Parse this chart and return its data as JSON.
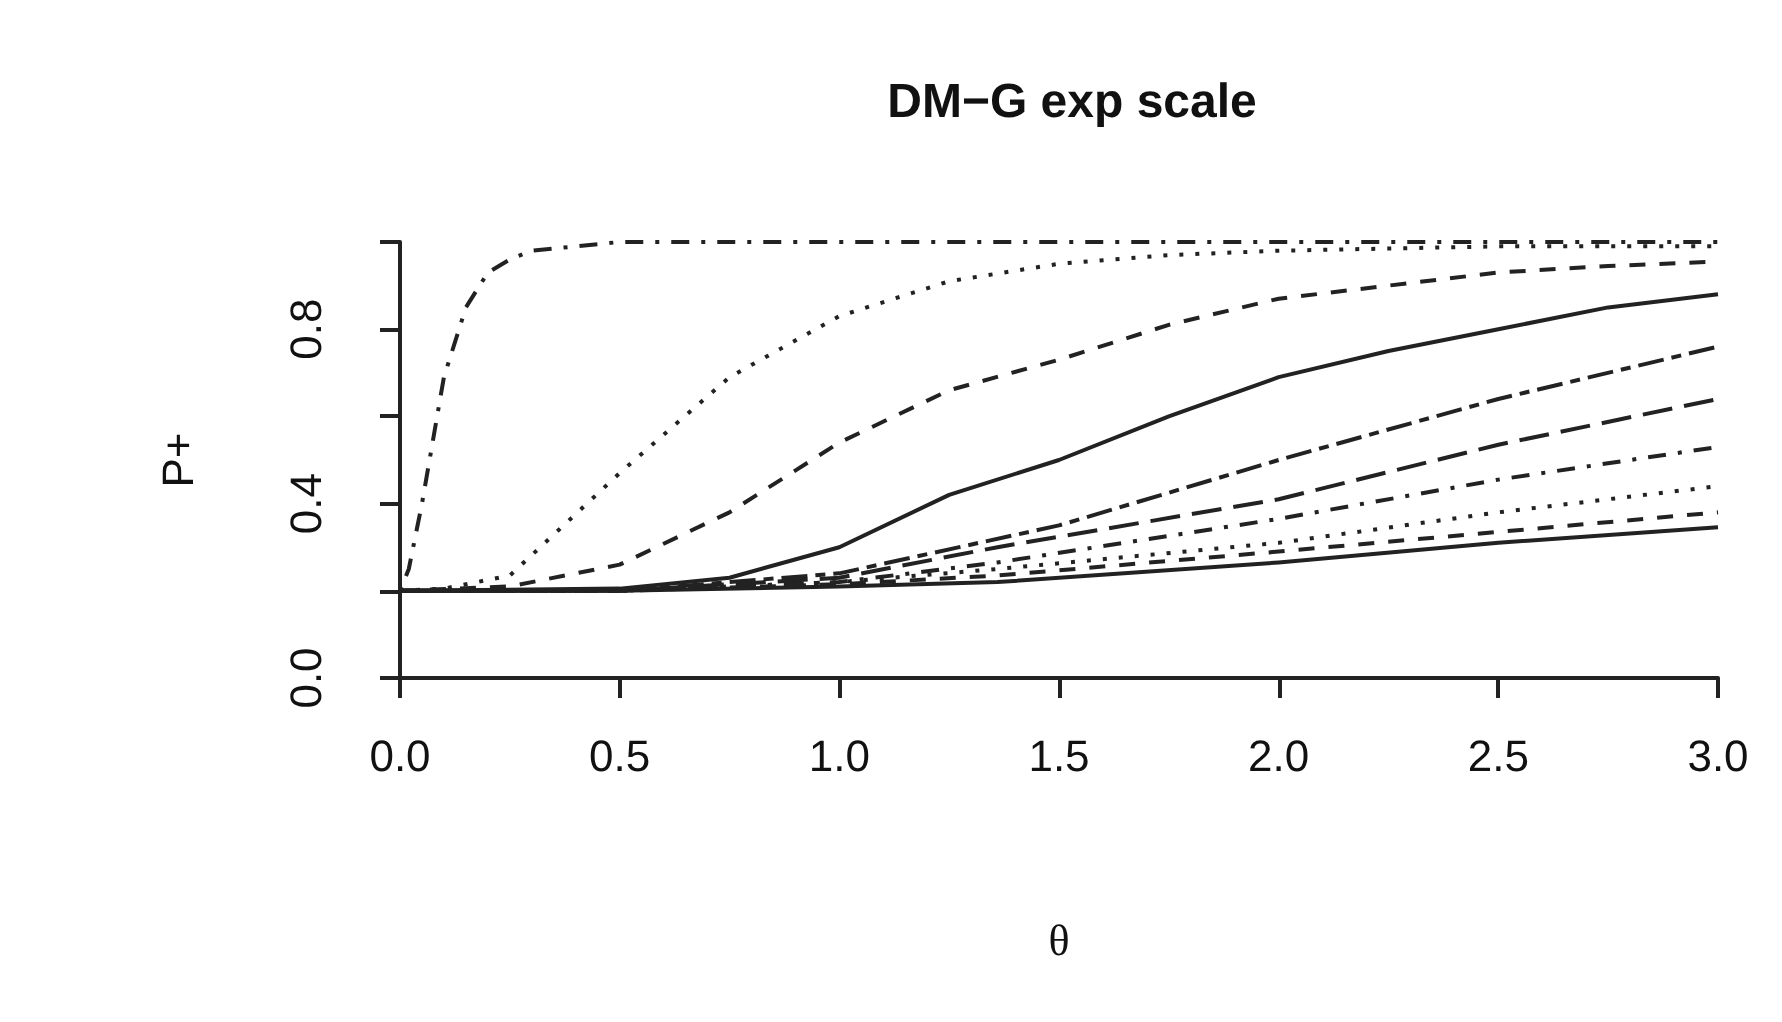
{
  "chart_data": {
    "type": "line",
    "title": "DM−G exp scale",
    "xlabel": "θ",
    "ylabel": "P+",
    "xlim": [
      0,
      3
    ],
    "xticks": [
      {
        "value": 0,
        "label": "0.0"
      },
      0.5,
      {
        "value": 1,
        "label": "1.0"
      },
      1.5,
      {
        "value": 2,
        "label": "2.0"
      },
      2.5,
      {
        "value": 3,
        "label": "3.0"
      }
    ],
    "ylim": [
      0,
      1
    ],
    "yticks": [
      {
        "value": 0,
        "label": "0.0"
      },
      {
        "value": 0.2,
        "label": null
      },
      0.4,
      {
        "value": 0.6,
        "label": null
      },
      0.8,
      {
        "value": 1,
        "label": null
      }
    ],
    "grid": false,
    "marker": "none",
    "series": [
      {
        "color": "#222222",
        "line_style": "solid",
        "x": [
          0,
          0.5,
          1,
          1.36,
          2,
          2.5,
          3
        ],
        "values": [
          0.2,
          0.2,
          0.21,
          0.22,
          0.265,
          0.31,
          0.346
        ]
      },
      {
        "color": "#222222",
        "line_style": "dashed",
        "x": [
          0,
          0.5,
          1,
          1.36,
          2,
          2.5,
          3
        ],
        "values": [
          0.2,
          0.2,
          0.215,
          0.235,
          0.29,
          0.335,
          0.38
        ]
      },
      {
        "color": "#222222",
        "line_style": "dotted",
        "x": [
          0,
          0.5,
          1,
          1.36,
          2,
          2.5,
          3
        ],
        "values": [
          0.2,
          0.2,
          0.22,
          0.25,
          0.31,
          0.38,
          0.44
        ]
      },
      {
        "color": "#222222",
        "line_style": "dotdash",
        "x": [
          0,
          0.5,
          1,
          1.36,
          2,
          2.5,
          3
        ],
        "values": [
          0.2,
          0.2,
          0.22,
          0.265,
          0.365,
          0.455,
          0.53
        ]
      },
      {
        "color": "#222222",
        "line_style": "longdash",
        "x": [
          0,
          0.5,
          1,
          1.36,
          2,
          2.5,
          3
        ],
        "values": [
          0.2,
          0.2,
          0.23,
          0.3,
          0.41,
          0.535,
          0.64
        ]
      },
      {
        "color": "#222222",
        "line_style": "twodash",
        "x": [
          0,
          0.5,
          1,
          1.5,
          2,
          2.5,
          3
        ],
        "values": [
          0.2,
          0.2,
          0.24,
          0.35,
          0.5,
          0.64,
          0.76
        ]
      },
      {
        "color": "#222222",
        "line_style": "solid",
        "x": [
          0,
          0.5,
          0.75,
          1,
          1.25,
          1.5,
          1.75,
          2,
          2.25,
          2.5,
          2.75,
          3
        ],
        "values": [
          0.2,
          0.205,
          0.23,
          0.3,
          0.42,
          0.5,
          0.6,
          0.69,
          0.75,
          0.8,
          0.85,
          0.88
        ]
      },
      {
        "color": "#222222",
        "line_style": "dashed",
        "x": [
          0,
          0.25,
          0.5,
          0.75,
          1,
          1.25,
          1.5,
          1.75,
          2,
          2.25,
          2.5,
          2.75,
          3
        ],
        "values": [
          0.2,
          0.21,
          0.26,
          0.38,
          0.54,
          0.66,
          0.73,
          0.81,
          0.87,
          0.9,
          0.93,
          0.945,
          0.955
        ]
      },
      {
        "color": "#222222",
        "line_style": "dotted",
        "x": [
          0,
          0.1,
          0.25,
          0.5,
          0.75,
          1,
          1.25,
          1.5,
          1.75,
          2,
          2.5,
          3
        ],
        "values": [
          0.2,
          0.205,
          0.235,
          0.47,
          0.69,
          0.83,
          0.91,
          0.95,
          0.97,
          0.98,
          0.99,
          0.99
        ]
      },
      {
        "color": "#222222",
        "line_style": "dotdash",
        "x": [
          0,
          0.02,
          0.05,
          0.1,
          0.15,
          0.2,
          0.25,
          0.3,
          0.4,
          0.5,
          1,
          2,
          3
        ],
        "values": [
          0.2,
          0.25,
          0.4,
          0.69,
          0.85,
          0.93,
          0.96,
          0.98,
          0.99,
          1,
          1,
          1,
          1
        ]
      }
    ]
  }
}
